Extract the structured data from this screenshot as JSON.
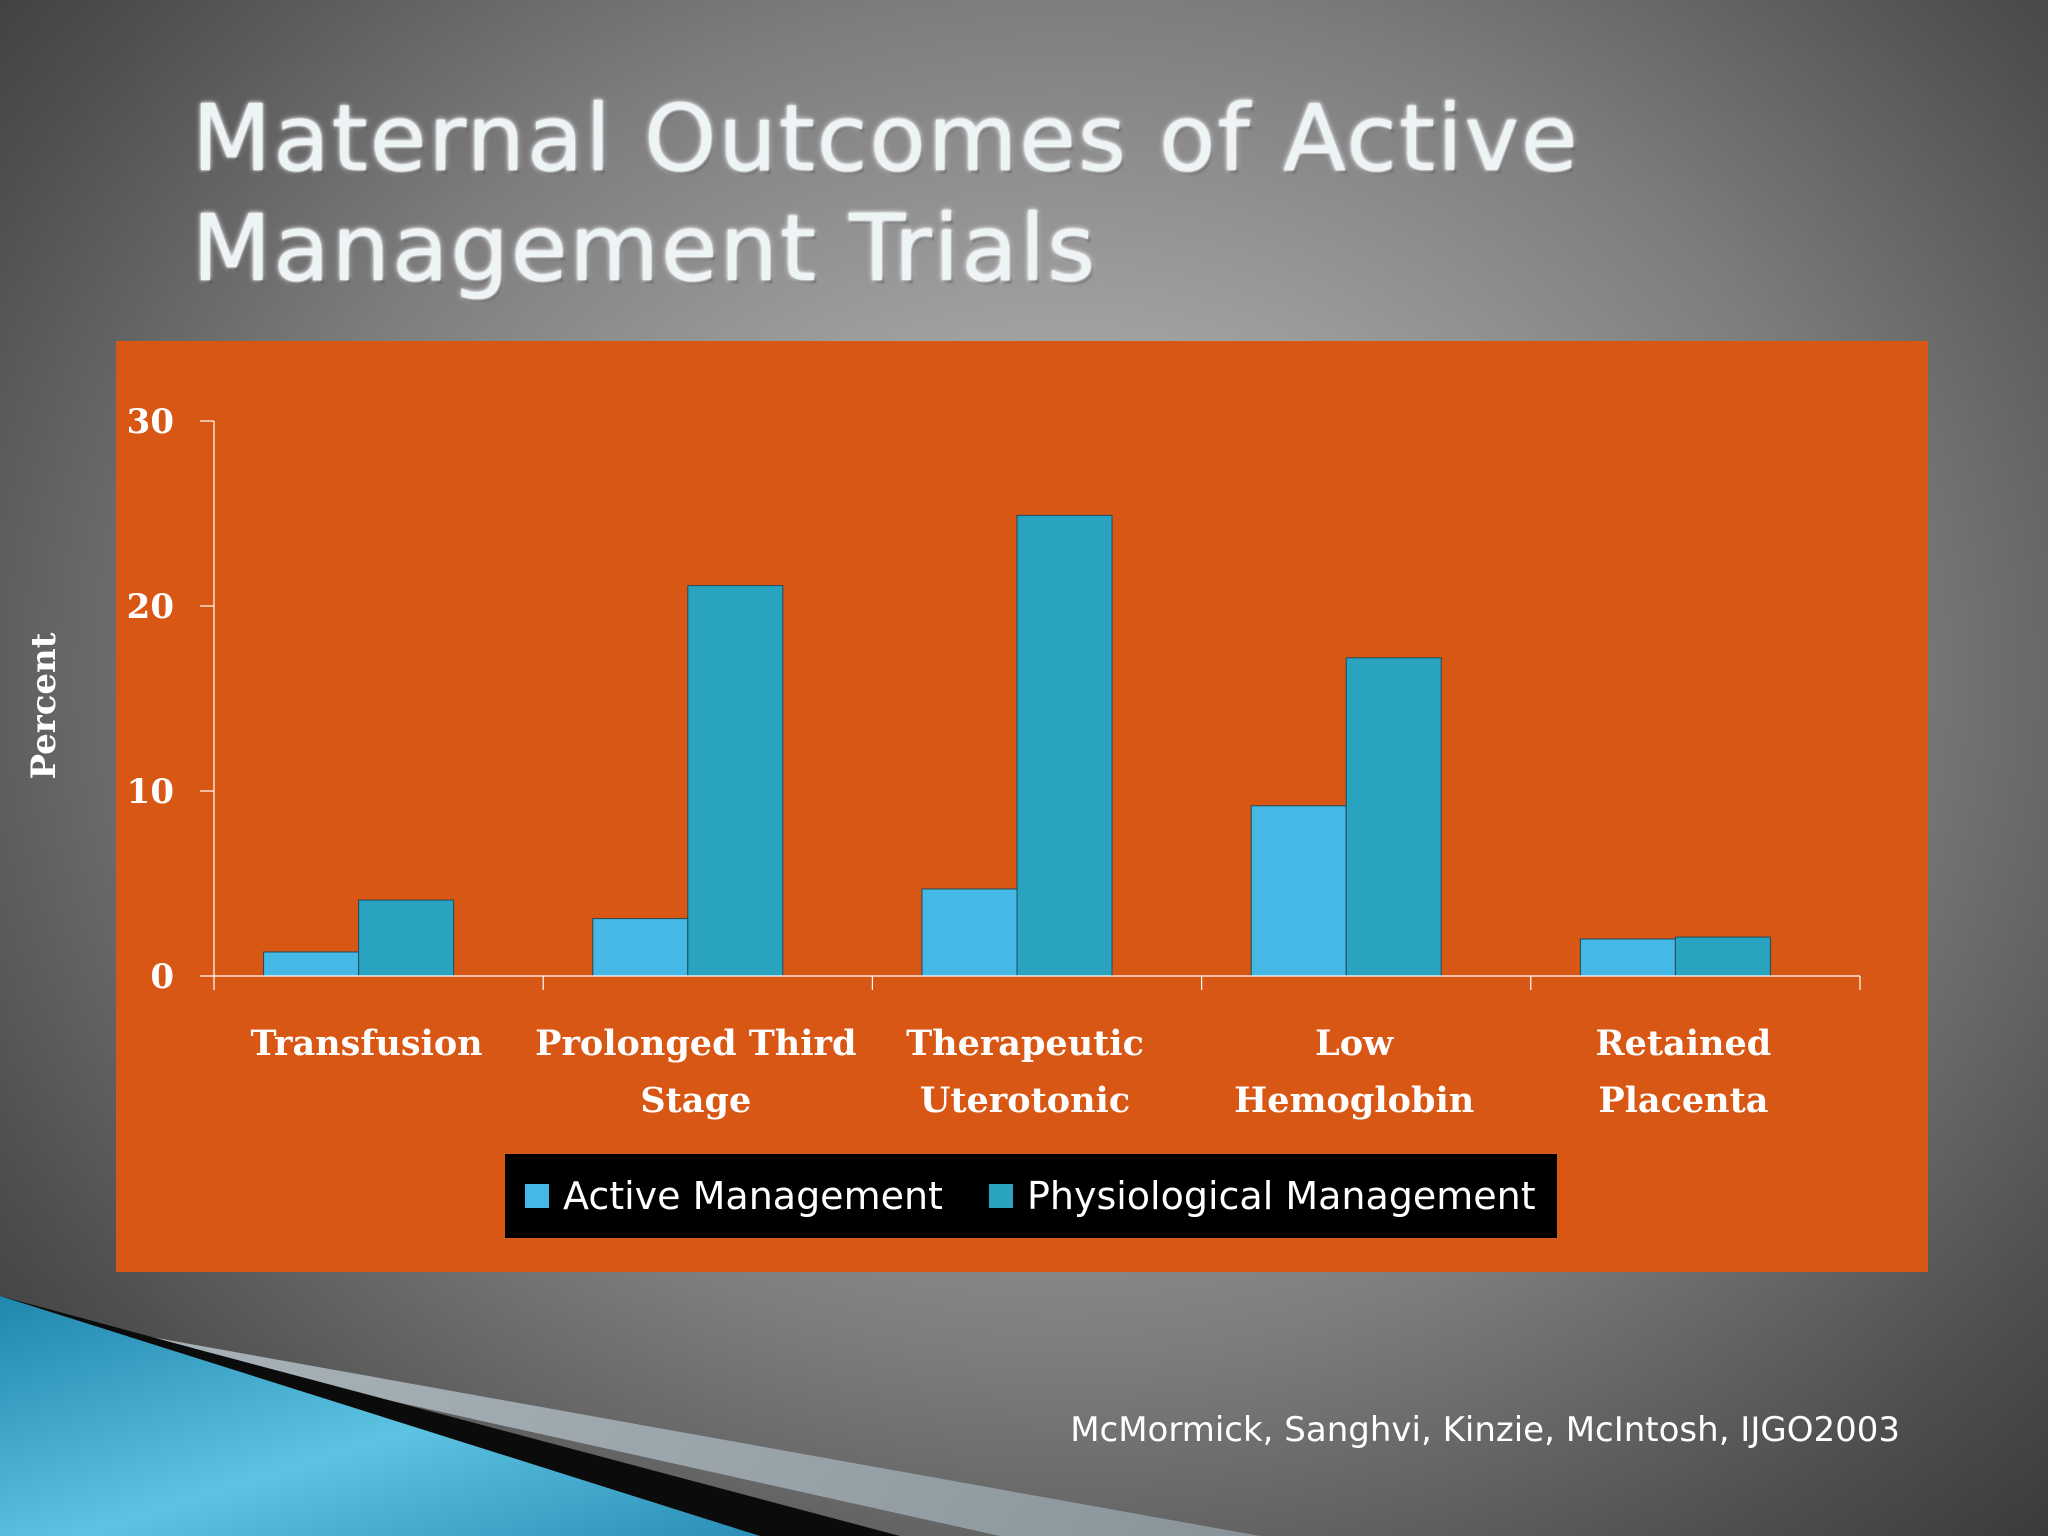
{
  "slide": {
    "title_lines": [
      "Maternal Outcomes of Active",
      "Management Trials"
    ],
    "citation": "McMormick, Sanghvi, Kinzie, McIntosh, IJGO2003",
    "colors": {
      "chart_panel": "#d95714",
      "active": "#45b8e6",
      "physiological": "#2aa3c1",
      "legend_background": "#000000",
      "axis_and_labels": "#ffffff"
    }
  },
  "chart_data": {
    "type": "bar",
    "title": "",
    "xlabel": "",
    "ylabel": "Percent",
    "ylim": [
      0,
      30
    ],
    "yticks": [
      0,
      10,
      20,
      30
    ],
    "grid": false,
    "legend_position": "bottom",
    "categories": [
      [
        "Transfusion"
      ],
      [
        "Prolonged Third",
        "Stage"
      ],
      [
        "Therapeutic",
        "Uterotonic"
      ],
      [
        "Low",
        "Hemoglobin"
      ],
      [
        "Retained",
        "Placenta"
      ]
    ],
    "series": [
      {
        "name": "Active Management",
        "values": [
          1.3,
          3.1,
          4.7,
          9.2,
          2.0
        ]
      },
      {
        "name": "Physiological Management",
        "values": [
          4.1,
          21.1,
          24.9,
          17.2,
          2.1
        ]
      }
    ]
  }
}
